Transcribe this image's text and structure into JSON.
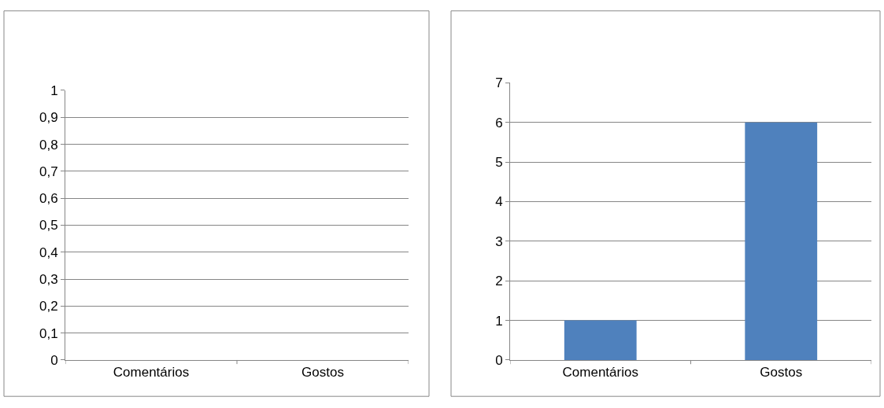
{
  "chart_data": [
    {
      "type": "bar",
      "categories": [
        "Comentários",
        "Gostos"
      ],
      "values": [
        0,
        0
      ],
      "color": "#4f81bd",
      "ylim": [
        0,
        1
      ],
      "yticks": [
        0,
        {
          "value": 0.1,
          "label": "0,1"
        },
        {
          "value": 0.2,
          "label": "0,2"
        },
        {
          "value": 0.3,
          "label": "0,3"
        },
        {
          "value": 0.4,
          "label": "0,4"
        },
        {
          "value": 0.5,
          "label": "0,5"
        },
        {
          "value": 0.6,
          "label": "0,6"
        },
        {
          "value": 0.7,
          "label": "0,7"
        },
        {
          "value": 0.8,
          "label": "0,8"
        },
        {
          "value": 0.9,
          "label": "0,9"
        },
        1
      ],
      "grid": "y"
    },
    {
      "type": "bar",
      "categories": [
        "Comentários",
        "Gostos"
      ],
      "values": [
        1,
        6
      ],
      "color": "#4f81bd",
      "ylim": [
        0,
        7
      ],
      "yticks": [
        0,
        1,
        2,
        3,
        4,
        5,
        6,
        7
      ],
      "grid": "y"
    }
  ]
}
